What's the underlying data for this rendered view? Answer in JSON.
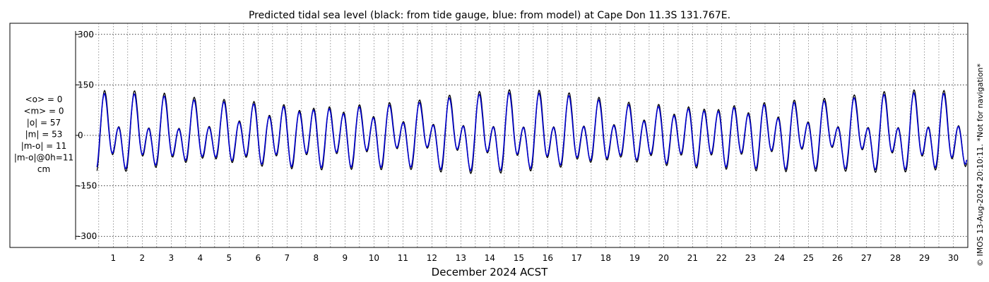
{
  "chart_data": {
    "type": "line",
    "title": "Predicted tidal sea level (black: from tide gauge, blue: from model) at Cape Don 11.3S 131.767E.",
    "xlabel": "December 2024 ACST",
    "ylabel": "",
    "xlim": [
      0.2,
      31.0
    ],
    "ylim": [
      -310,
      310
    ],
    "y_ticks": [
      -300,
      -150,
      0,
      150,
      300
    ],
    "y_tick_labels": [
      "-300",
      "-150",
      "0",
      "150",
      "300"
    ],
    "x_ticks": [
      1,
      2,
      3,
      4,
      5,
      6,
      7,
      8,
      9,
      10,
      11,
      12,
      13,
      14,
      15,
      16,
      17,
      18,
      19,
      20,
      21,
      22,
      23,
      24,
      25,
      26,
      27,
      28,
      29,
      30
    ],
    "x_tick_labels": [
      "1",
      "2",
      "3",
      "4",
      "5",
      "6",
      "7",
      "8",
      "9",
      "10",
      "11",
      "12",
      "13",
      "14",
      "15",
      "16",
      "17",
      "18",
      "19",
      "20",
      "21",
      "22",
      "23",
      "24",
      "25",
      "26",
      "27",
      "28",
      "29",
      "30"
    ],
    "grid": true,
    "series": [
      {
        "color": "#000000",
        "params": {
          "M2": {
            "amp": [
              52,
              78
            ],
            "lag": 3.7
          },
          "K1": {
            "amp": [
              12,
              44
            ],
            "lag": 6.2
          },
          "O1": {
            "amp": [
              8,
              18
            ],
            "lag": 5.5
          },
          "offset": 0,
          "amp_scale": 1.02,
          "spring_days": [
            0.8,
            15.5,
            30.1
          ],
          "diurnal_peak_days": [
            3.5,
            16.2,
            29.5
          ]
        }
      },
      {
        "color": "#0000cc",
        "params": {
          "M2": {
            "amp": [
              48,
              74
            ],
            "lag": 3.5
          },
          "K1": {
            "amp": [
              12,
              42
            ],
            "lag": 6.0
          },
          "O1": {
            "amp": [
              8,
              17
            ],
            "lag": 5.3
          },
          "offset": 0,
          "amp_scale": 1.0,
          "spring_days": [
            0.8,
            15.5,
            30.1
          ],
          "diurnal_peak_days": [
            3.5,
            16.2,
            29.5
          ]
        }
      }
    ]
  },
  "stats": {
    "lines": [
      "<o> = 0",
      "<m> = 0",
      "|o| = 57",
      "|m| = 53",
      "|m-o| = 11",
      "|m-o|@0h=11",
      "cm"
    ]
  },
  "footer": "© IMOS 13-Aug-2024 20:10:11. *Not for navigation*"
}
